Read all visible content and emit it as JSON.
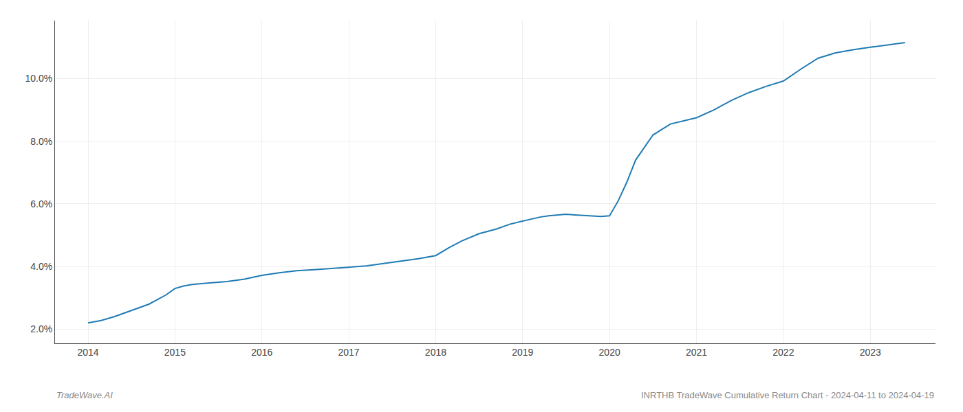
{
  "chart_data": {
    "type": "line",
    "x": [
      2014.0,
      2014.15,
      2014.3,
      2014.5,
      2014.7,
      2014.9,
      2015.0,
      2015.1,
      2015.2,
      2015.4,
      2015.6,
      2015.8,
      2016.0,
      2016.2,
      2016.4,
      2016.6,
      2016.8,
      2017.0,
      2017.2,
      2017.4,
      2017.6,
      2017.8,
      2018.0,
      2018.15,
      2018.3,
      2018.5,
      2018.7,
      2018.85,
      2019.0,
      2019.1,
      2019.2,
      2019.3,
      2019.4,
      2019.5,
      2019.6,
      2019.7,
      2019.8,
      2019.9,
      2020.0,
      2020.1,
      2020.2,
      2020.3,
      2020.5,
      2020.7,
      2021.0,
      2021.2,
      2021.4,
      2021.6,
      2021.8,
      2022.0,
      2022.2,
      2022.4,
      2022.6,
      2022.8,
      2023.0,
      2023.2,
      2023.4
    ],
    "values": [
      2.2,
      2.28,
      2.4,
      2.6,
      2.8,
      3.1,
      3.3,
      3.38,
      3.43,
      3.48,
      3.52,
      3.6,
      3.72,
      3.8,
      3.87,
      3.9,
      3.94,
      3.97,
      4.02,
      4.1,
      4.18,
      4.25,
      4.35,
      4.6,
      4.82,
      5.05,
      5.2,
      5.35,
      5.45,
      5.52,
      5.58,
      5.62,
      5.65,
      5.67,
      5.65,
      5.63,
      5.61,
      5.6,
      5.62,
      6.1,
      6.7,
      7.4,
      8.2,
      8.55,
      8.75,
      9.0,
      9.3,
      9.55,
      9.75,
      9.92,
      10.3,
      10.65,
      10.82,
      10.92,
      11.0,
      11.08,
      11.15
    ],
    "color": "#1f7bb5",
    "xlim": [
      2013.62,
      2023.75
    ],
    "ylim": [
      1.55,
      11.85
    ],
    "xticks": [
      2014,
      2015,
      2016,
      2017,
      2018,
      2019,
      2020,
      2021,
      2022,
      2023
    ],
    "yticks": [
      {
        "value": 2.0,
        "label": "2.0%"
      },
      {
        "value": 4.0,
        "label": "4.0%"
      },
      {
        "value": 6.0,
        "label": "6.0%"
      },
      {
        "value": 8.0,
        "label": "8.0%"
      },
      {
        "value": 10.0,
        "label": "10.0%"
      }
    ],
    "grid": true,
    "annotations": [
      "TradeWave.AI",
      "INRTHB TradeWave Cumulative Return Chart - 2024-04-11 to 2024-04-19"
    ]
  }
}
